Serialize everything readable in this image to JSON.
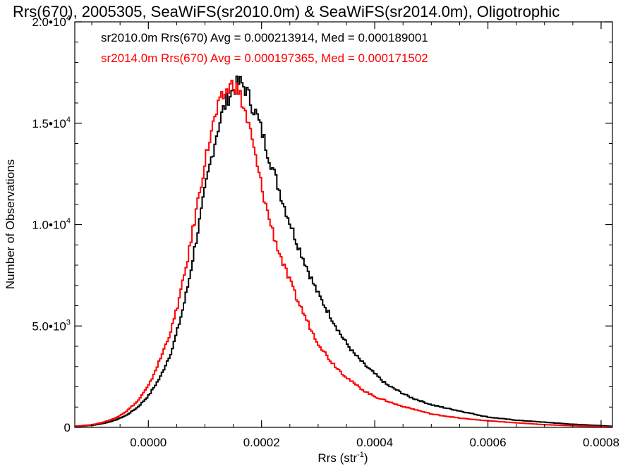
{
  "chart_data": {
    "type": "line",
    "title": "Rrs(670), 2005305, SeaWiFS(sr2010.0m) & SeaWiFS(sr2014.0m), Oligotrophic",
    "xlabel": "Rrs (str",
    "xlabel_sup": "-1",
    "xlabel_suffix": ")",
    "ylabel": "Number of Observations",
    "xlim": [
      -0.00013,
      0.00082
    ],
    "ylim": [
      0,
      20000
    ],
    "x_ticks": [
      {
        "value": 0.0,
        "label": "0.0000"
      },
      {
        "value": 0.0002,
        "label": "0.0002"
      },
      {
        "value": 0.0004,
        "label": "0.0004"
      },
      {
        "value": 0.0006,
        "label": "0.0006"
      },
      {
        "value": 0.0008,
        "label": "0.0008"
      }
    ],
    "y_ticks": [
      {
        "value": 0,
        "mant": "0",
        "exp": ""
      },
      {
        "value": 5000,
        "mant": "5.0•10",
        "exp": "3"
      },
      {
        "value": 10000,
        "mant": "1.0•10",
        "exp": "4"
      },
      {
        "value": 15000,
        "mant": "1.5•10",
        "exp": "4"
      },
      {
        "value": 20000,
        "mant": "2.0•10",
        "exp": "4"
      }
    ],
    "grid": false,
    "legend_position": "top-left",
    "series": [
      {
        "name": "sr2010.0m Rrs(670) Avg = 0.000213914, Med = 0.000189001",
        "color": "#000000",
        "x": [
          -0.00013,
          -0.0001,
          -8e-05,
          -6e-05,
          -4e-05,
          -2e-05,
          0.0,
          2e-05,
          4e-05,
          5e-05,
          6e-05,
          7e-05,
          8e-05,
          9e-05,
          0.0001,
          0.00011,
          0.00012,
          0.00013,
          0.00014,
          0.00015,
          0.000155,
          0.00016,
          0.000165,
          0.00017,
          0.000175,
          0.00018,
          0.00019,
          0.0002,
          0.00021,
          0.00022,
          0.00023,
          0.00024,
          0.00025,
          0.00026,
          0.00027,
          0.00028,
          0.00029,
          0.0003,
          0.00032,
          0.00034,
          0.00036,
          0.00038,
          0.0004,
          0.00042,
          0.00044,
          0.00046,
          0.00048,
          0.0005,
          0.00055,
          0.0006,
          0.00065,
          0.0007,
          0.00075,
          0.0008,
          0.00082
        ],
        "y": [
          50,
          100,
          200,
          350,
          600,
          1000,
          1600,
          2500,
          3800,
          4800,
          5900,
          7200,
          8800,
          10300,
          11900,
          13300,
          14600,
          15600,
          16300,
          16700,
          16900,
          17000,
          16900,
          16700,
          16400,
          16000,
          15400,
          14500,
          13500,
          12600,
          11700,
          10800,
          10000,
          9200,
          8500,
          7800,
          7100,
          6500,
          5500,
          4500,
          3700,
          3100,
          2600,
          2100,
          1800,
          1500,
          1300,
          1100,
          800,
          500,
          350,
          250,
          150,
          80,
          50
        ]
      },
      {
        "name": "sr2014.0m Rrs(670) Avg = 0.000197365, Med = 0.000171502",
        "color": "#ff0000",
        "x": [
          -0.00013,
          -0.0001,
          -8e-05,
          -6e-05,
          -4e-05,
          -2e-05,
          0.0,
          2e-05,
          4e-05,
          5e-05,
          6e-05,
          7e-05,
          8e-05,
          9e-05,
          0.0001,
          0.00011,
          0.00012,
          0.00013,
          0.00014,
          0.00015,
          0.00016,
          0.00017,
          0.00018,
          0.00019,
          0.0002,
          0.00021,
          0.00022,
          0.00023,
          0.00024,
          0.00025,
          0.00026,
          0.00027,
          0.00028,
          0.00029,
          0.0003,
          0.00032,
          0.00034,
          0.00036,
          0.00038,
          0.0004,
          0.00042,
          0.00044,
          0.00046,
          0.00048,
          0.0005,
          0.00055,
          0.0006,
          0.00065,
          0.0007,
          0.00075,
          0.0008,
          0.00082
        ],
        "y": [
          60,
          130,
          260,
          450,
          800,
          1300,
          2100,
          3400,
          4900,
          6000,
          7200,
          8600,
          10200,
          11800,
          13300,
          14600,
          15600,
          16300,
          16700,
          17000,
          16400,
          15500,
          14400,
          13000,
          11700,
          10500,
          9500,
          8600,
          7800,
          7100,
          6400,
          5800,
          5200,
          4600,
          4100,
          3300,
          2700,
          2200,
          1800,
          1500,
          1300,
          1100,
          950,
          800,
          650,
          450,
          320,
          220,
          130,
          80,
          40,
          20
        ]
      }
    ]
  }
}
